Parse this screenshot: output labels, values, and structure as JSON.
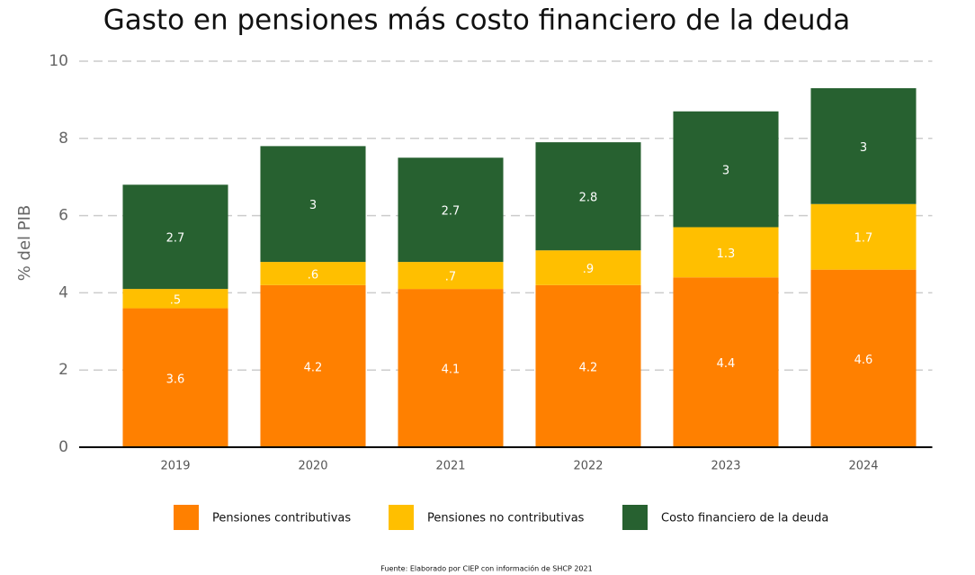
{
  "chart_data": {
    "type": "stacked_bar",
    "title": "Gasto en pensiones más costo financiero de la deuda",
    "y_label": "% del PIB",
    "source": "Fuente: Elaborado por CIEP con información de SHCP 2021",
    "categories": [
      "2019",
      "2020",
      "2021",
      "2022",
      "2023",
      "2024"
    ],
    "series": [
      {
        "name": "Pensiones contributivas",
        "color": "#ff8000",
        "values": [
          3.6,
          4.2,
          4.1,
          4.2,
          4.4,
          4.6
        ]
      },
      {
        "name": "Pensiones no contributivas",
        "color": "#ffbf00",
        "values": [
          0.5,
          0.6,
          0.7,
          0.9,
          1.3,
          1.7
        ],
        "value_labels": [
          ".5",
          ".6",
          ".7",
          ".9",
          "1.3",
          "1.7"
        ]
      },
      {
        "name": "Costo financiero de la deuda",
        "color": "#276130",
        "values": [
          2.7,
          3,
          2.7,
          2.8,
          3,
          3
        ]
      }
    ],
    "ylim": [
      0,
      10
    ],
    "yticks": [
      0,
      2,
      4,
      6,
      8,
      10
    ],
    "grid": true,
    "legend": "bottom"
  }
}
